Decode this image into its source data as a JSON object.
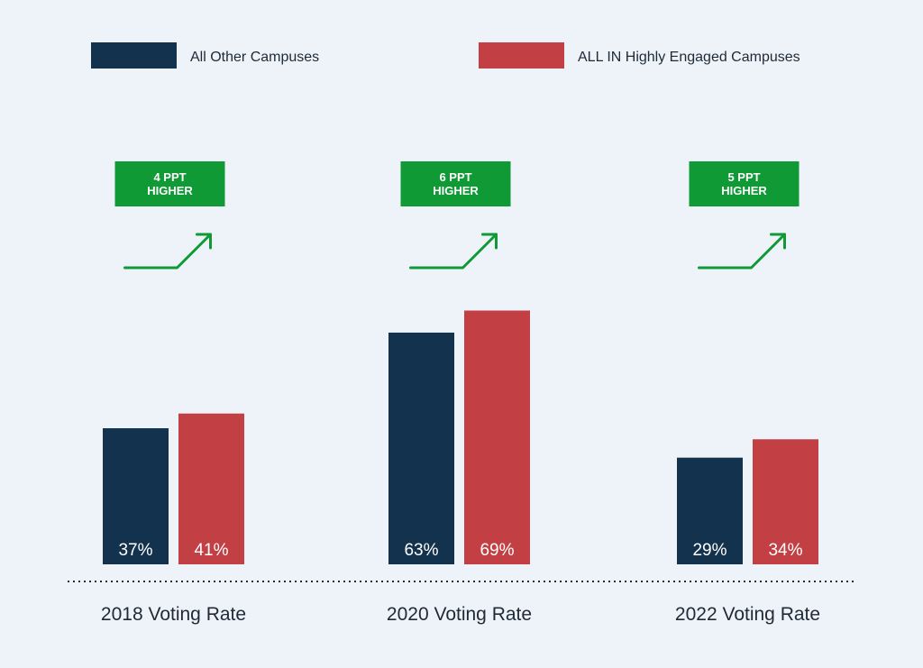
{
  "colors": {
    "background": "#edf3f9",
    "other": "#13324d",
    "allin": "#c24044",
    "callout": "#0f9a35",
    "text": "#1f2a36"
  },
  "chart_data": {
    "type": "bar",
    "categories": [
      "2018 Voting Rate",
      "2020 Voting Rate",
      "2022 Voting Rate"
    ],
    "series": [
      {
        "name": "All Other Campuses",
        "values": [
          37,
          63,
          29
        ],
        "labels": [
          "37%",
          "63%",
          "29%"
        ]
      },
      {
        "name": "ALL IN Highly Engaged Campuses",
        "values": [
          41,
          69,
          34
        ],
        "labels": [
          "41%",
          "69%",
          "34%"
        ]
      }
    ],
    "callouts": [
      {
        "line1": "4 PPT",
        "line2": "HIGHER"
      },
      {
        "line1": "6 PPT",
        "line2": "HIGHER"
      },
      {
        "line1": "5 PPT",
        "line2": "HIGHER"
      }
    ],
    "ylim": [
      0,
      100
    ],
    "unit": "%",
    "grid": false,
    "legend": "top",
    "baseline": "dotted"
  }
}
